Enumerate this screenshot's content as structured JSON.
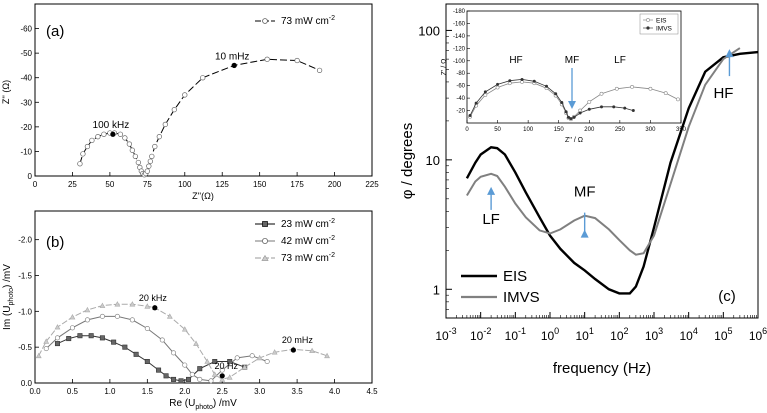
{
  "chart_data": [
    {
      "panel": "a",
      "label": "(a)",
      "type": "line",
      "xlabel": "Z''(Ω)",
      "ylabel": "Z'' (Ω)",
      "xlim": [
        0,
        225
      ],
      "ylim": [
        0,
        -70
      ],
      "xticks": [
        0,
        25,
        50,
        75,
        100,
        125,
        150,
        175,
        200,
        225
      ],
      "yticks": [
        0,
        -10,
        -20,
        -30,
        -40,
        -50,
        -60
      ],
      "legend": {
        "main": "73 mW cm",
        "sup": "-2"
      },
      "annotations": [
        {
          "text": "100 kHz",
          "at": [
            52,
            -17
          ]
        },
        {
          "text": "10 mHz",
          "at": [
            133,
            -45
          ]
        }
      ],
      "series": [
        {
          "name": "73 mW cm-2",
          "x": [
            30,
            32,
            35,
            38,
            42,
            46,
            50,
            53,
            57,
            60,
            63,
            65,
            67,
            69,
            70,
            71,
            72,
            73,
            74,
            75,
            76,
            77,
            78,
            80,
            83,
            87,
            93,
            100,
            112,
            133,
            155,
            175,
            190
          ],
          "y": [
            -5,
            -9,
            -12,
            -14.5,
            -16,
            -17,
            -17.5,
            -17.5,
            -17,
            -15.5,
            -13,
            -10.5,
            -8,
            -5.5,
            -3.5,
            -2,
            -1,
            -0.5,
            -1,
            -2,
            -4,
            -6,
            -8,
            -12,
            -16,
            -21,
            -27,
            -33,
            -40,
            -45,
            -47.5,
            -47,
            -43
          ]
        }
      ]
    },
    {
      "panel": "b",
      "label": "(b)",
      "type": "line",
      "xlabel": {
        "pre": "Re (U",
        "sub": "photo",
        "post": ") /mV"
      },
      "ylabel": {
        "pre": "Im (U",
        "sub": "photo",
        "post": ") /mV"
      },
      "xlim": [
        0,
        4.5
      ],
      "ylim": [
        0,
        -2.4
      ],
      "xticks": [
        0.0,
        0.5,
        1.0,
        1.5,
        2.0,
        2.5,
        3.0,
        3.5,
        4.0,
        4.5
      ],
      "yticks": [
        0.0,
        -0.5,
        -1.0,
        -1.5,
        -2.0
      ],
      "annotations": [
        {
          "text": "20 kHz",
          "at": [
            1.6,
            -1.05
          ]
        },
        {
          "text": "20 Hz",
          "at": [
            2.5,
            -0.1
          ]
        },
        {
          "text": "20 mHz",
          "at": [
            3.45,
            -0.46
          ]
        }
      ],
      "series": [
        {
          "name": "23 mW cm-2",
          "legend": {
            "main": "23 mW cm",
            "sup": "-2"
          },
          "marker": "square",
          "x": [
            0.3,
            0.45,
            0.6,
            0.75,
            0.9,
            1.05,
            1.2,
            1.35,
            1.5,
            1.65,
            1.75,
            1.85,
            1.95,
            2.05,
            2.2,
            2.4,
            2.6,
            2.8
          ],
          "y": [
            -0.55,
            -0.62,
            -0.66,
            -0.66,
            -0.63,
            -0.57,
            -0.5,
            -0.4,
            -0.3,
            -0.18,
            -0.1,
            -0.05,
            -0.03,
            -0.05,
            -0.2,
            -0.3,
            -0.3,
            -0.22
          ]
        },
        {
          "name": "42 mW cm-2",
          "legend": {
            "main": "42 mW cm",
            "sup": "-2"
          },
          "marker": "circle",
          "x": [
            0.15,
            0.3,
            0.5,
            0.7,
            0.9,
            1.1,
            1.3,
            1.5,
            1.7,
            1.85,
            2.0,
            2.1,
            2.2,
            2.35,
            2.5,
            2.7,
            2.9,
            3.1
          ],
          "y": [
            -0.48,
            -0.63,
            -0.77,
            -0.88,
            -0.93,
            -0.93,
            -0.88,
            -0.76,
            -0.6,
            -0.42,
            -0.25,
            -0.12,
            -0.05,
            -0.03,
            -0.18,
            -0.35,
            -0.38,
            -0.3
          ]
        },
        {
          "name": "73 mW cm-2",
          "legend": {
            "main": "73 mW cm",
            "sup": "-2"
          },
          "marker": "triangle",
          "x": [
            0.05,
            0.15,
            0.3,
            0.5,
            0.7,
            0.9,
            1.1,
            1.3,
            1.5,
            1.6,
            1.8,
            2.0,
            2.15,
            2.3,
            2.4,
            2.5,
            2.6,
            2.8,
            3.0,
            3.2,
            3.45,
            3.7,
            3.9
          ],
          "y": [
            -0.38,
            -0.58,
            -0.78,
            -0.92,
            -1.02,
            -1.08,
            -1.1,
            -1.1,
            -1.07,
            -1.05,
            -0.93,
            -0.75,
            -0.55,
            -0.3,
            -0.12,
            -0.05,
            -0.08,
            -0.22,
            -0.35,
            -0.43,
            -0.47,
            -0.45,
            -0.38
          ]
        }
      ]
    },
    {
      "panel": "c",
      "label": "(c)",
      "type": "line",
      "xscale": "log",
      "yscale": "log",
      "xlabel": "frequency (Hz)",
      "ylabel": "φ / degrees",
      "xlim": [
        0.001,
        1000000
      ],
      "ylim": [
        0.6,
        160
      ],
      "xtick_exponents": [
        -3,
        -2,
        -1,
        0,
        1,
        2,
        3,
        4,
        5,
        6
      ],
      "yticks": [
        1,
        10,
        100
      ],
      "annotations": [
        {
          "text": "LF",
          "at": [
            0.02,
            3.2
          ]
        },
        {
          "text": "MF",
          "at": [
            10,
            5.2
          ]
        },
        {
          "text": "HF",
          "at": [
            150000,
            30
          ]
        }
      ],
      "series": [
        {
          "name": "EIS",
          "color": "#000000",
          "x": [
            0.004,
            0.007,
            0.01,
            0.02,
            0.03,
            0.05,
            0.1,
            0.2,
            0.5,
            1,
            2,
            5,
            10,
            20,
            50,
            100,
            200,
            300,
            500,
            1000,
            3000,
            10000,
            30000,
            100000,
            300000,
            1000000
          ],
          "y": [
            7.2,
            9.5,
            11,
            12.5,
            12.3,
            11,
            8,
            5.6,
            3.6,
            2.6,
            2.05,
            1.6,
            1.4,
            1.2,
            1.0,
            0.93,
            0.93,
            1.05,
            1.5,
            3.0,
            9.5,
            25,
            48,
            62,
            66,
            68
          ]
        },
        {
          "name": "IMVS",
          "color": "#808080",
          "x": [
            0.004,
            0.007,
            0.01,
            0.02,
            0.03,
            0.05,
            0.1,
            0.2,
            0.5,
            1,
            2,
            5,
            10,
            20,
            50,
            100,
            200,
            300,
            500,
            1000,
            3000,
            10000,
            30000,
            100000,
            300000
          ],
          "y": [
            5.3,
            6.8,
            7.4,
            7.8,
            7.5,
            6.2,
            4.6,
            3.6,
            2.85,
            2.7,
            2.9,
            3.4,
            3.7,
            3.55,
            2.9,
            2.4,
            2.0,
            1.85,
            1.9,
            2.6,
            6.5,
            18,
            38,
            60,
            73
          ]
        }
      ],
      "inset": {
        "xlabel": "Z'' / Ω",
        "ylabel": "Z' / Ω",
        "xlim": [
          0,
          350
        ],
        "ylim": [
          0,
          -180
        ],
        "xticks": [
          0,
          50,
          100,
          150,
          200,
          250,
          300,
          350
        ],
        "yticks": [
          -20,
          -40,
          -60,
          -80,
          -100,
          -120,
          -140,
          -160,
          -180
        ],
        "labels": [
          "HF",
          "MF",
          "LF"
        ],
        "series": [
          {
            "name": "EIS",
            "x": [
              5,
              15,
              30,
              50,
              70,
              90,
              110,
              130,
              145,
              155,
              162,
              166,
              170,
              175,
              185,
              200,
              220,
              245,
              270,
              300,
              325,
              345
            ],
            "y": [
              -10,
              -28,
              -45,
              -57,
              -64,
              -66,
              -64,
              -56,
              -44,
              -30,
              -16,
              -8,
              -6,
              -10,
              -20,
              -34,
              -47,
              -55,
              -58,
              -55,
              -48,
              -38
            ]
          },
          {
            "name": "IMVS",
            "x": [
              5,
              15,
              30,
              50,
              70,
              90,
              110,
              130,
              145,
              155,
              162,
              166,
              170,
              175,
              185,
              200,
              220,
              240,
              258,
              272
            ],
            "y": [
              -12,
              -32,
              -50,
              -62,
              -68,
              -70,
              -67,
              -59,
              -47,
              -33,
              -18,
              -9,
              -7,
              -9,
              -16,
              -22,
              -26,
              -26,
              -24,
              -20
            ]
          }
        ]
      }
    }
  ]
}
